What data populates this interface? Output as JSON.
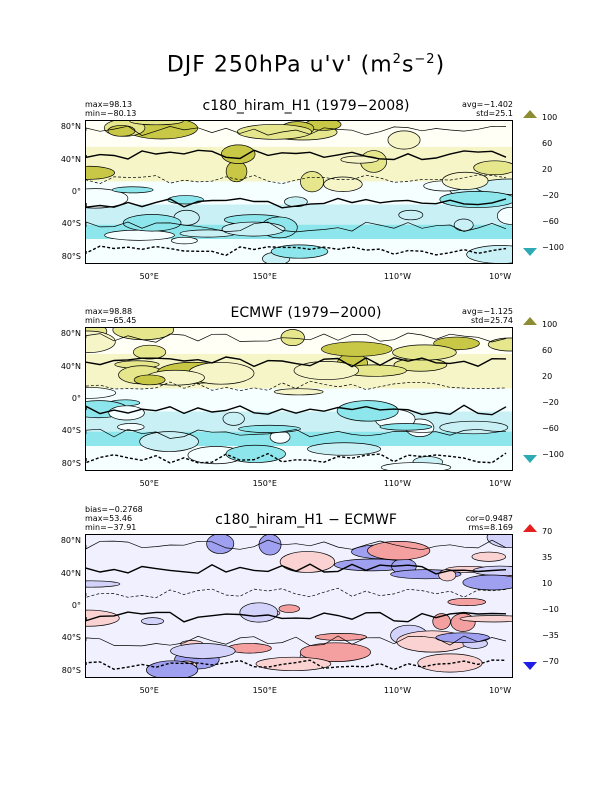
{
  "title_main": "DJF 250hPa u'v'",
  "title_units": "(m",
  "title_sup1": "2",
  "title_mid": "s",
  "title_sup2": "−2",
  "title_end": ")",
  "lat_labels": [
    "80°N",
    "40°N",
    "0°",
    "40°S",
    "80°S"
  ],
  "lon_labels": [
    "50°E",
    "150°E",
    "110°W",
    "10°W"
  ],
  "panels": [
    {
      "title": "c180_hiram_H1 (1979−2008)",
      "left_stats": [
        "max=98.13",
        "min=−80.13"
      ],
      "right_stats": [
        "avg=−1.402",
        "std=25.1"
      ],
      "cbar_labels": [
        "100",
        "60",
        "20",
        "−20",
        "−60",
        "−100"
      ],
      "cbar_colors": [
        "#8c8c32",
        "#c8c846",
        "#e6e68c",
        "#f5f5c8",
        "#fffff5",
        "#f5ffff",
        "#c8f0f5",
        "#8ce6eb",
        "#46c8d2",
        "#2daab4"
      ]
    },
    {
      "title": "ECMWF (1979−2000)",
      "left_stats": [
        "max=98.88",
        "min=−65.45"
      ],
      "right_stats": [
        "avg=−1.125",
        "std=25.74"
      ],
      "cbar_labels": [
        "100",
        "60",
        "20",
        "−20",
        "−60",
        "−100"
      ],
      "cbar_colors": [
        "#8c8c32",
        "#c8c846",
        "#e6e68c",
        "#f5f5c8",
        "#fffff5",
        "#f5ffff",
        "#c8f0f5",
        "#8ce6eb",
        "#46c8d2",
        "#2daab4"
      ]
    },
    {
      "title": "c180_hiram_H1 − ECMWF",
      "left_stats": [
        "bias=−0.2768",
        "max=53.46",
        "min=−37.91"
      ],
      "right_stats": [
        "cor=0.9487",
        "rms=8.169"
      ],
      "cbar_labels": [
        "70",
        "35",
        "10",
        "−10",
        "−35",
        "−70"
      ],
      "cbar_colors": [
        "#e61e1e",
        "#f06464",
        "#f5a0a0",
        "#fad2d2",
        "#fff0f0",
        "#f0f0ff",
        "#d2d2fa",
        "#a0a0f0",
        "#6464e6",
        "#1e1ee6"
      ]
    }
  ]
}
